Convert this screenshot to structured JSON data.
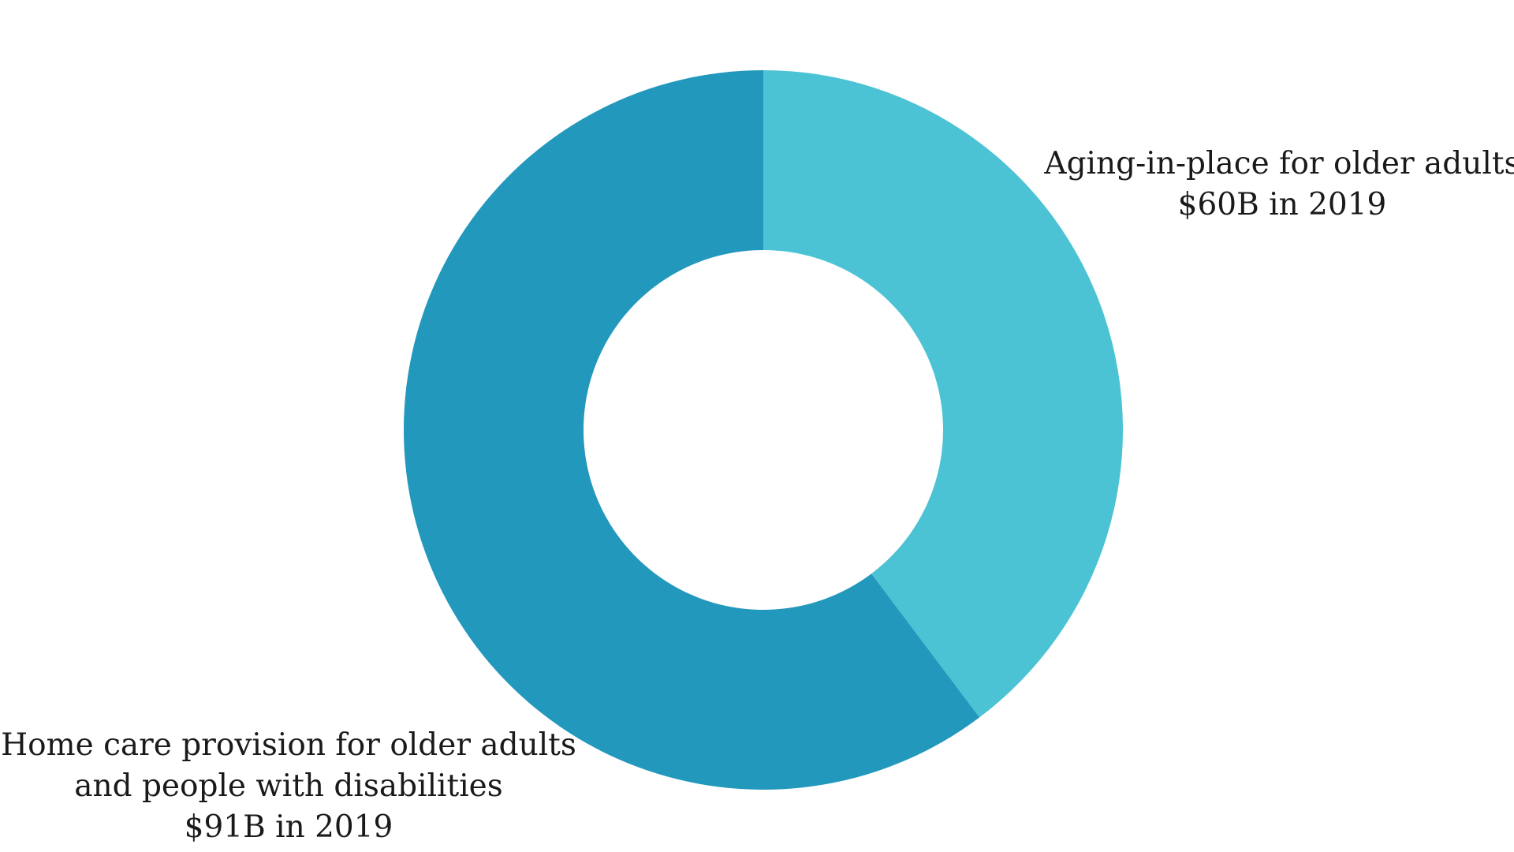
{
  "chart_data": {
    "type": "pie",
    "donut": true,
    "unit": "$B",
    "slices": [
      {
        "name": "Aging-in-place for older adults",
        "value": 60,
        "value_label": "$60B in 2019",
        "color": "#4BC3D4"
      },
      {
        "name": "Home care provision for older adults and people with disabilities",
        "value": 91,
        "value_label": "$91B in 2019",
        "color": "#2398BD"
      }
    ],
    "labels": {
      "aging": {
        "line1": "Aging-in-place for older adults",
        "line2": "$60B in 2019"
      },
      "home": {
        "line1": "Home care provision for older adults",
        "line2": "and people with disabilities",
        "line3": "$91B in 2019"
      }
    }
  }
}
